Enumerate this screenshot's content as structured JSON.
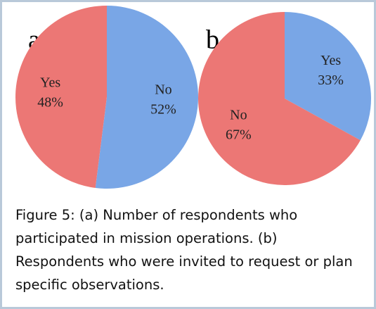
{
  "chart_data": [
    {
      "type": "pie",
      "title": "a",
      "categories": [
        "No",
        "Yes"
      ],
      "values": [
        52,
        48
      ],
      "value_labels": [
        "52%",
        "48%"
      ],
      "colors": [
        "#79a6e6",
        "#ec7775"
      ]
    },
    {
      "type": "pie",
      "title": "b",
      "categories": [
        "Yes",
        "No"
      ],
      "values": [
        33,
        67
      ],
      "value_labels": [
        "33%",
        "67%"
      ],
      "colors": [
        "#79a6e6",
        "#ec7775"
      ]
    }
  ],
  "caption": "Figure 5: (a) Number of respondents who participated in mission operations. (b) Respondents who were invited to request or plan specific observations."
}
